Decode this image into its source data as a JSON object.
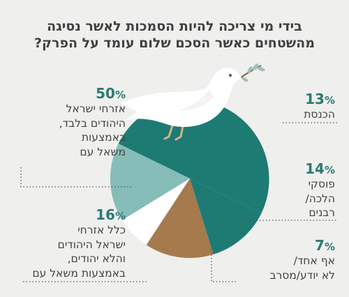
{
  "title": {
    "line1": "בידי מי צריכה להיות הסמכות לאשר נסיגה",
    "line2": "מהשטחים כאשר הסכם שלום עומד על הפרק?"
  },
  "chart_data": {
    "type": "pie",
    "title": "בידי מי צריכה להיות הסמכות לאשר נסיגה מהשטחים כאשר הסכם שלום עומד על הפרק?",
    "unit": "%",
    "slices": [
      {
        "label": "אזרחי ישראל היהודים בלבד, באמצעות משאל עם",
        "lines": [
          "אזרחי ישראל",
          "היהודים בלבד,",
          "באמצעות",
          "משאל עם"
        ],
        "value": 50,
        "color": "#1d7b74"
      },
      {
        "label": "הכנסת",
        "lines": [
          "הכנסת"
        ],
        "value": 13,
        "color": "#1d7b74"
      },
      {
        "label": "פוסקי הלכה/רבנים",
        "lines": [
          "פוסקי",
          "הלכה/",
          "רבנים"
        ],
        "value": 14,
        "color": "#a57a4d"
      },
      {
        "label": "כלל אזרחי ישראל היהודים והלא יהודים, באמצעות משאל עם",
        "lines": [
          "כלל אזרחי",
          "ישראל היהודים",
          "והלא יהודים,",
          "באמצעות משאל עם"
        ],
        "value": 16,
        "color": "#d6b99a"
      },
      {
        "label": "אף אחד/לא יודע/מסרב",
        "lines": [
          "אף אחד/",
          "לא יודע/מסרב"
        ],
        "value": 7,
        "color": "#ffffff"
      }
    ],
    "inner_colors": [
      "#1d7b74",
      "#1d7b74",
      "#a57a4d",
      "#d6b99a",
      "#ffffff",
      "#86bdb8"
    ]
  },
  "colors": {
    "background": "#efefee",
    "accent": "#2a7b73",
    "dove": "#ffffff",
    "olive": "#9ec1bf"
  }
}
